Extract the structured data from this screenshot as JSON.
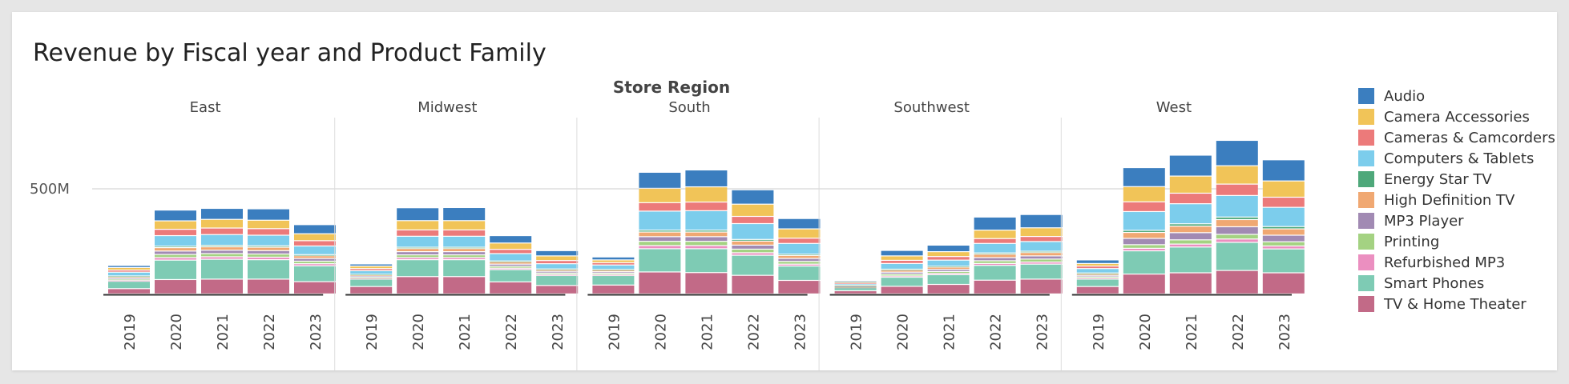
{
  "chart_data": {
    "type": "bar",
    "stacked": true,
    "title": "Revenue by Fiscal year and Product Family",
    "facet_title": "Store Region",
    "facets": [
      "East",
      "Midwest",
      "South",
      "Southwest",
      "West"
    ],
    "categories": [
      "2019",
      "2020",
      "2021",
      "2022",
      "2023"
    ],
    "y_ticks": [
      {
        "value": 500,
        "label": "500M"
      }
    ],
    "ylim": [
      0,
      800
    ],
    "units": "M",
    "grid": true,
    "legend_position": "right",
    "series": [
      {
        "name": "TV & Home Theater",
        "color": "#c26a87",
        "values": {
          "East": [
            25,
            68,
            70,
            70,
            58
          ],
          "Midwest": [
            35,
            82,
            82,
            57,
            40
          ],
          "South": [
            42,
            104,
            101,
            88,
            64
          ],
          "Southwest": [
            15,
            36,
            45,
            65,
            70
          ],
          "West": [
            35,
            94,
            100,
            111,
            100
          ]
        }
      },
      {
        "name": "Smart Phones",
        "color": "#7ecbb4",
        "values": {
          "East": [
            35,
            92,
            94,
            92,
            75
          ],
          "Midwest": [
            35,
            80,
            80,
            58,
            47
          ],
          "South": [
            45,
            110,
            113,
            95,
            68
          ],
          "Southwest": [
            15,
            43,
            46,
            70,
            71
          ],
          "West": [
            35,
            110,
            122,
            133,
            113
          ]
        }
      },
      {
        "name": "Refurbished MP3",
        "color": "#eb8fc0",
        "values": {
          "East": [
            5,
            12,
            12,
            12,
            10
          ],
          "Midwest": [
            4,
            10,
            10,
            7,
            5
          ],
          "South": [
            5,
            15,
            15,
            12,
            9
          ],
          "Southwest": [
            2,
            6,
            6,
            9,
            10
          ],
          "West": [
            5,
            12,
            14,
            16,
            14
          ]
        }
      },
      {
        "name": "Printing",
        "color": "#a4d282",
        "values": {
          "East": [
            5,
            15,
            15,
            15,
            12
          ],
          "Midwest": [
            5,
            13,
            13,
            9,
            7
          ],
          "South": [
            6,
            20,
            20,
            17,
            13
          ],
          "Southwest": [
            2,
            9,
            9,
            13,
            14
          ],
          "West": [
            6,
            17,
            20,
            22,
            20
          ]
        }
      },
      {
        "name": "MP3 Player",
        "color": "#a18ab3",
        "values": {
          "East": [
            6,
            16,
            16,
            16,
            13
          ],
          "Midwest": [
            6,
            15,
            15,
            10,
            8
          ],
          "South": [
            7,
            22,
            22,
            19,
            14
          ],
          "Southwest": [
            3,
            9,
            10,
            15,
            15
          ],
          "West": [
            7,
            30,
            34,
            36,
            31
          ]
        }
      },
      {
        "name": "High Definition TV",
        "color": "#f0a872",
        "values": {
          "East": [
            6,
            16,
            16,
            16,
            13
          ],
          "Midwest": [
            6,
            15,
            15,
            11,
            8
          ],
          "South": [
            8,
            22,
            22,
            19,
            14
          ],
          "Southwest": [
            3,
            10,
            11,
            16,
            16
          ],
          "West": [
            8,
            28,
            31,
            34,
            30
          ]
        }
      },
      {
        "name": "Energy Star TV",
        "color": "#4ea87a",
        "values": {
          "East": [
            3,
            7,
            7,
            7,
            5
          ],
          "Midwest": [
            2,
            6,
            6,
            4,
            3
          ],
          "South": [
            3,
            9,
            9,
            8,
            6
          ],
          "Southwest": [
            1,
            4,
            4,
            6,
            6
          ],
          "West": [
            3,
            10,
            11,
            12,
            11
          ]
        }
      },
      {
        "name": "Computers & Tablets",
        "color": "#7ccdec",
        "values": {
          "East": [
            18,
            50,
            51,
            50,
            41
          ],
          "Midwest": [
            17,
            52,
            52,
            35,
            25
          ],
          "South": [
            21,
            90,
            92,
            75,
            51
          ],
          "Southwest": [
            7,
            27,
            29,
            45,
            46
          ],
          "West": [
            21,
            89,
            95,
            102,
            91
          ]
        }
      },
      {
        "name": "Cameras & Camcorders",
        "color": "#ec7a7a",
        "values": {
          "East": [
            10,
            30,
            31,
            31,
            25
          ],
          "Midwest": [
            10,
            30,
            30,
            20,
            15
          ],
          "South": [
            11,
            40,
            41,
            34,
            25
          ],
          "Southwest": [
            5,
            15,
            17,
            23,
            24
          ],
          "West": [
            12,
            46,
            50,
            54,
            48
          ]
        }
      },
      {
        "name": "Camera Accessories",
        "color": "#f1c458",
        "values": {
          "East": [
            12,
            40,
            41,
            40,
            33
          ],
          "Midwest": [
            12,
            44,
            44,
            30,
            22
          ],
          "South": [
            13,
            68,
            72,
            58,
            44
          ],
          "Southwest": [
            5,
            21,
            23,
            40,
            41
          ],
          "West": [
            12,
            72,
            81,
            87,
            77
          ]
        }
      },
      {
        "name": "Audio",
        "color": "#3b7ebf",
        "values": {
          "East": [
            10,
            51,
            52,
            54,
            43
          ],
          "Midwest": [
            10,
            61,
            62,
            35,
            25
          ],
          "South": [
            14,
            76,
            80,
            68,
            49
          ],
          "Southwest": [
            3,
            26,
            31,
            62,
            63
          ],
          "West": [
            17,
            90,
            99,
            120,
            100
          ]
        }
      }
    ]
  }
}
